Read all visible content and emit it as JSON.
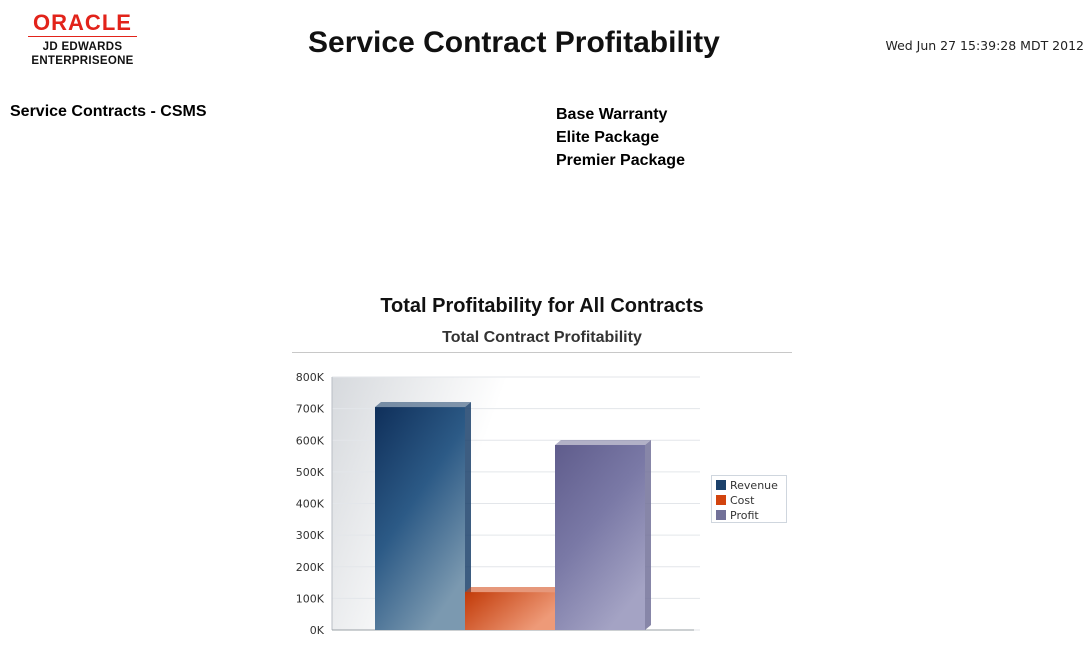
{
  "header": {
    "logo_oracle": "ORACLE",
    "logo_line1": "JD EDWARDS",
    "logo_line2": "ENTERPRISEONE",
    "report_title": "Service Contract Profitability",
    "timestamp": "Wed Jun 27 15:39:28 MDT 2012"
  },
  "filters": {
    "section_label": "Service Contracts - CSMS",
    "contracts": [
      "Base Warranty",
      "Elite Package",
      "Premier Package"
    ]
  },
  "chart_data": {
    "type": "bar",
    "title": "Total Profitability for All Contracts",
    "subtitle": "Total Contract Profitability",
    "xlabel": "",
    "ylabel": "",
    "ylim": [
      0,
      800000
    ],
    "yticks": [
      "0K",
      "100K",
      "200K",
      "300K",
      "400K",
      "500K",
      "600K",
      "700K",
      "800K"
    ],
    "grid": true,
    "legend_position": "right",
    "categories": [
      ""
    ],
    "series": [
      {
        "name": "Revenue",
        "values": [
          705000
        ],
        "color": "#1b416b"
      },
      {
        "name": "Cost",
        "values": [
          120000
        ],
        "color": "#d2440f"
      },
      {
        "name": "Profit",
        "values": [
          585000
        ],
        "color": "#727199"
      }
    ]
  }
}
